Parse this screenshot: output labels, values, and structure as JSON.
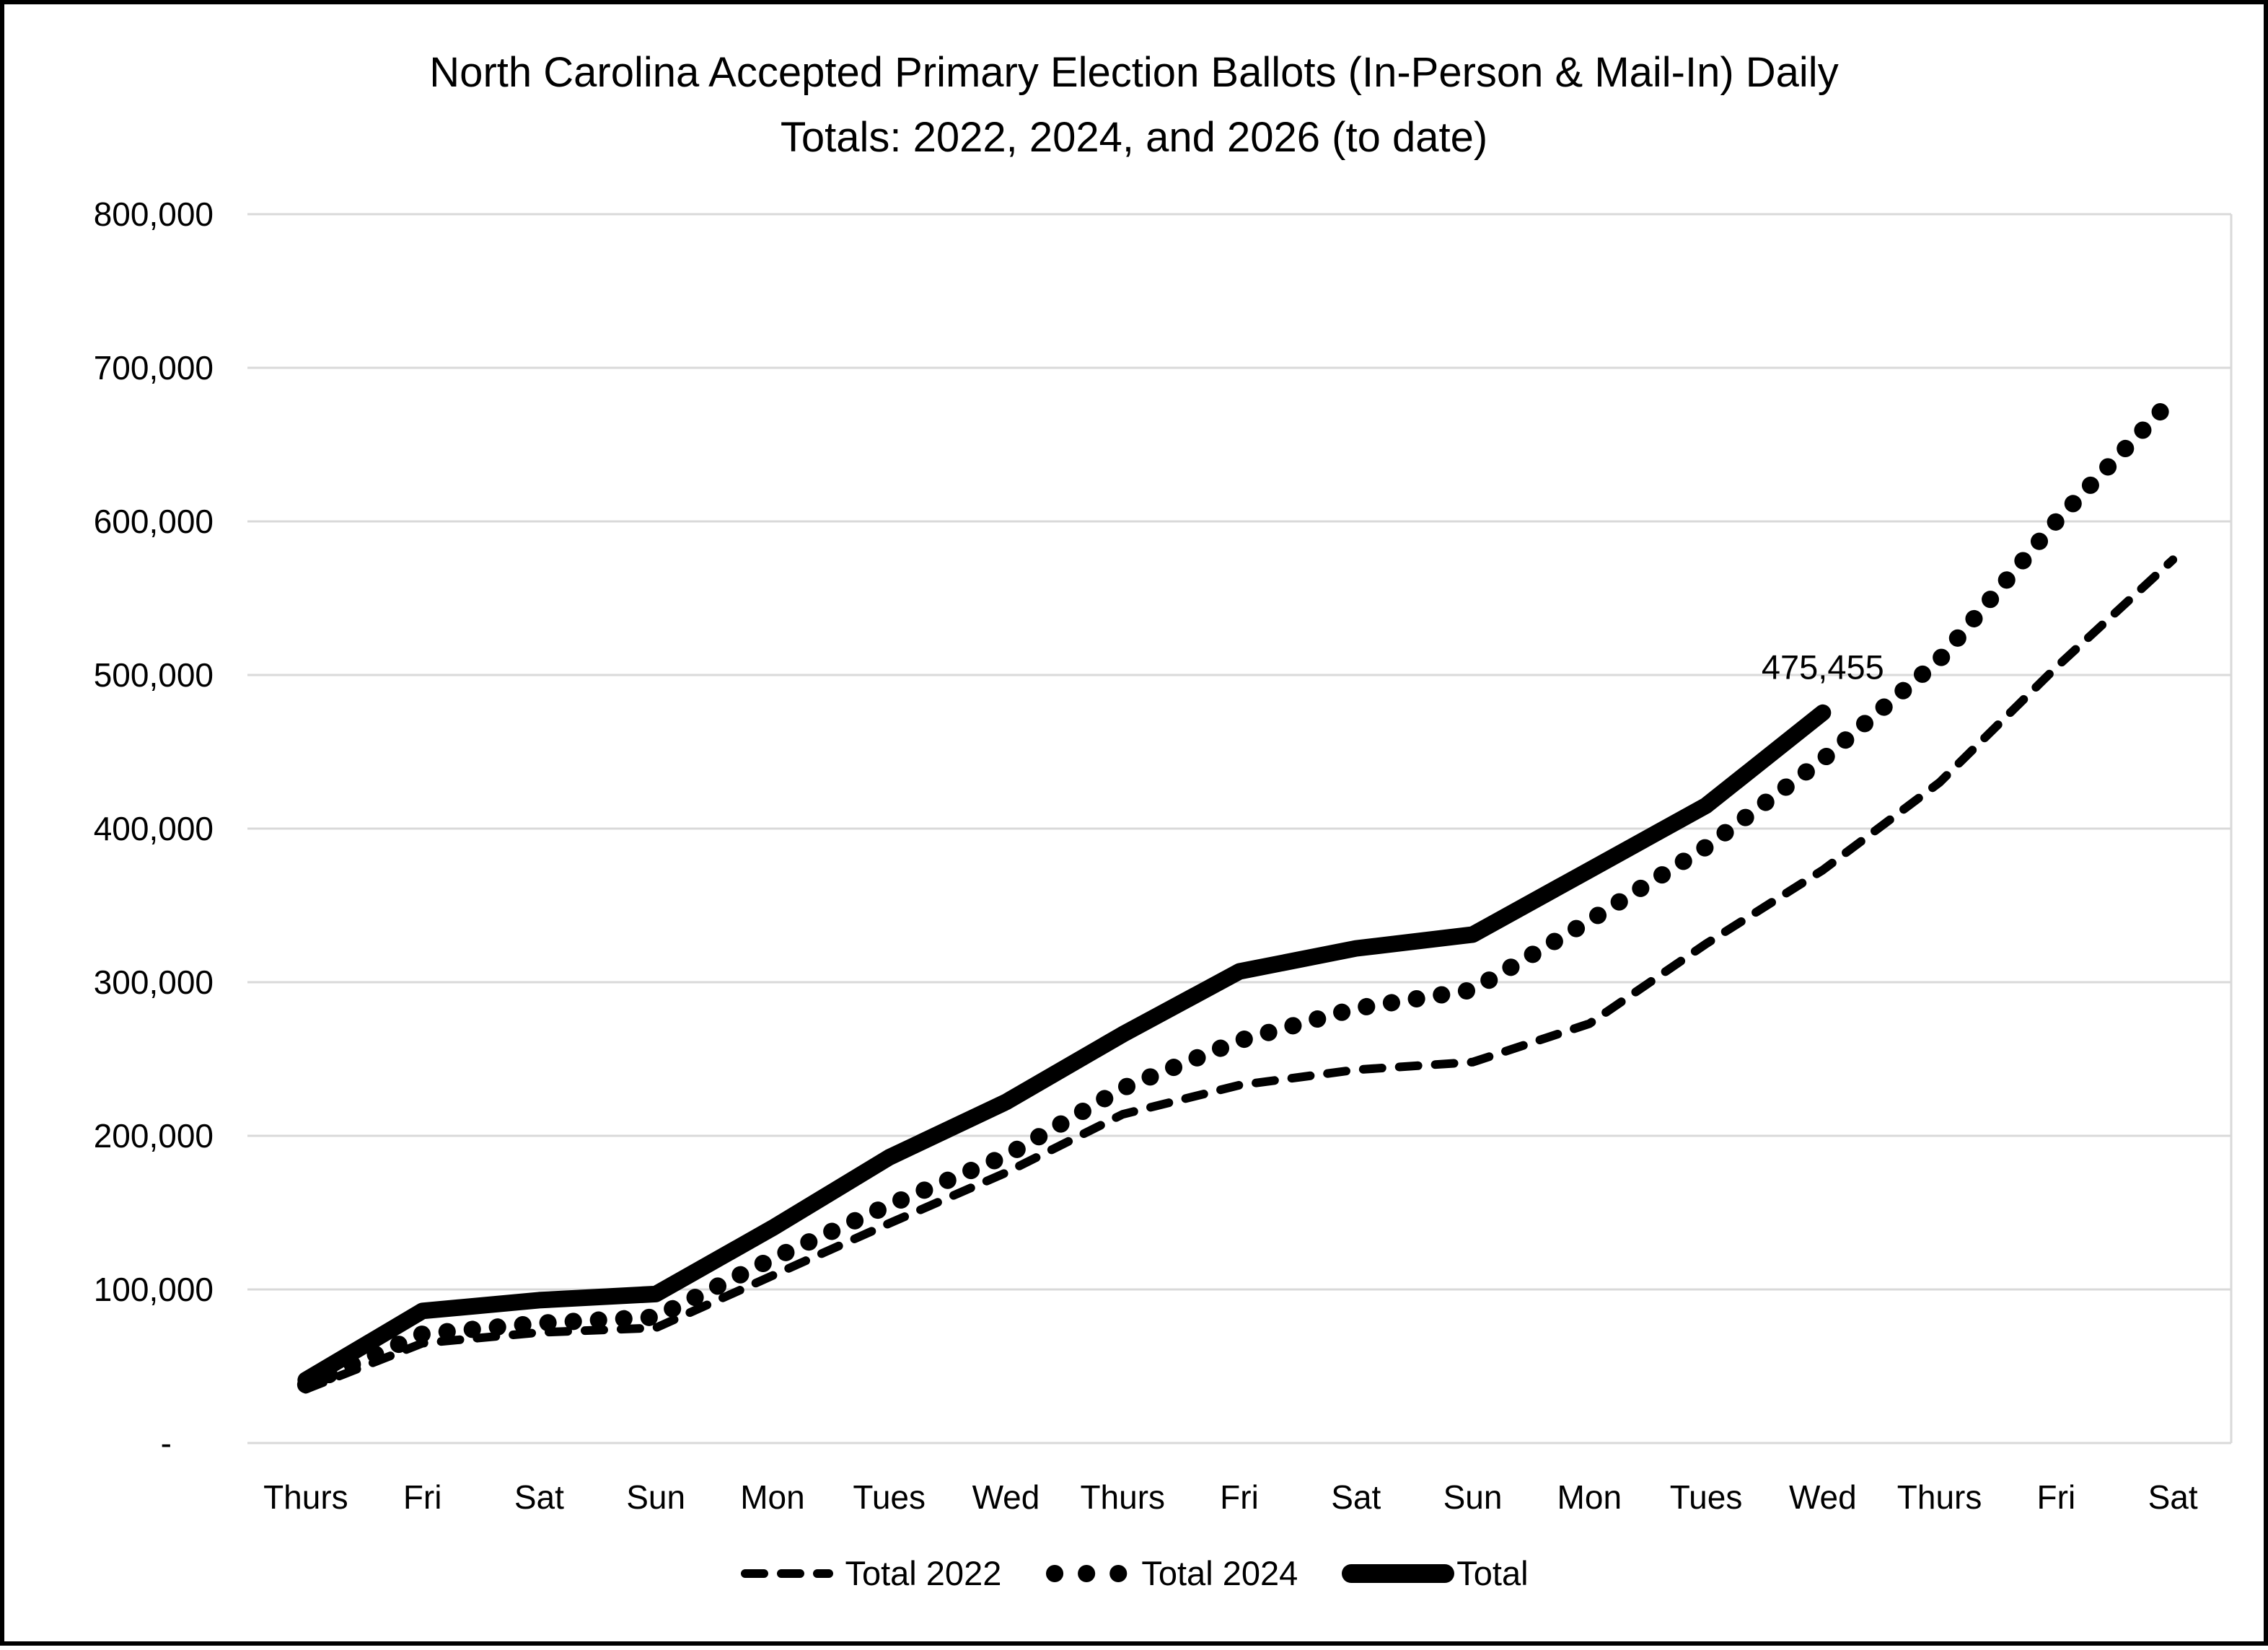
{
  "chart_data": {
    "type": "line",
    "title_lines": [
      "North Carolina Accepted Primary Election Ballots (In-Person & Mail-In) Daily",
      "Totals: 2022, 2024, and 2026 (to date)"
    ],
    "categories": [
      "Thurs",
      "Fri",
      "Sat",
      "Sun",
      "Mon",
      "Tues",
      "Wed",
      "Thurs",
      "Fri",
      "Sat",
      "Sun",
      "Mon",
      "Tues",
      "Wed",
      "Thurs",
      "Fri",
      "Sat"
    ],
    "xlabel": "",
    "ylabel": "",
    "ylim": [
      0,
      800000
    ],
    "ytick_interval": 100000,
    "ytick_labels": [
      "-",
      "100,000",
      "200,000",
      "300,000",
      "400,000",
      "500,000",
      "600,000",
      "700,000",
      "800,000"
    ],
    "grid": true,
    "legend_position": "bottom",
    "series": [
      {
        "name": "Total 2022",
        "style": "dashed",
        "values": [
          35000,
          65000,
          72000,
          75000,
          109000,
          143000,
          176000,
          214000,
          233000,
          243000,
          248000,
          273000,
          325000,
          373000,
          430000,
          505000,
          575000
        ]
      },
      {
        "name": "Total 2024",
        "style": "dotted",
        "values": [
          38000,
          71000,
          78000,
          82000,
          120000,
          155000,
          187000,
          231000,
          262000,
          283000,
          295000,
          340000,
          388000,
          445000,
          510000,
          600000,
          680000
        ]
      },
      {
        "name": "Total",
        "style": "solid",
        "values": [
          41000,
          86000,
          93000,
          97000,
          140000,
          186000,
          222000,
          266000,
          307000,
          322000,
          331000,
          373000,
          415000,
          475455
        ]
      }
    ],
    "annotation": {
      "text": "475,455",
      "series": "Total",
      "index": 13
    },
    "colors": {
      "line": "#000000",
      "grid": "#d9d9d9",
      "background": "#ffffff",
      "border": "#000000"
    }
  }
}
